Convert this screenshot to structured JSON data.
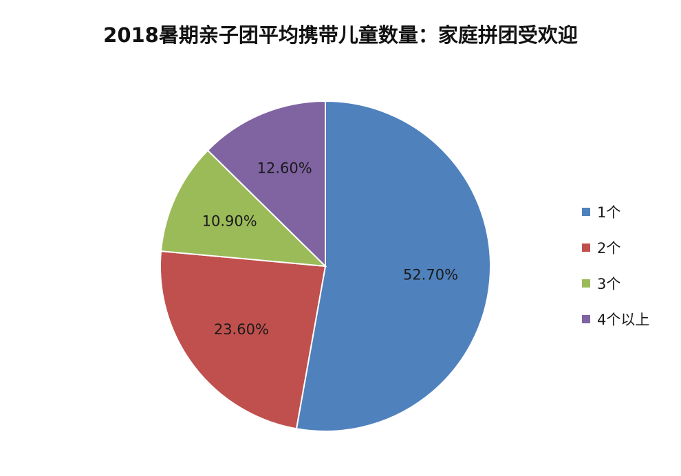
{
  "chart_data": {
    "type": "pie",
    "title": "2018暑期亲子团平均携带儿童数量：家庭拼团受欢迎",
    "slices": [
      {
        "label": "1个",
        "value": 52.7,
        "display": "52.70%",
        "color": "#4f81bd"
      },
      {
        "label": "2个",
        "value": 23.6,
        "display": "23.60%",
        "color": "#c0504d"
      },
      {
        "label": "3个",
        "value": 10.9,
        "display": "10.90%",
        "color": "#9bbb59"
      },
      {
        "label": "4个以上",
        "value": 12.6,
        "display": "12.60%",
        "color": "#8064a2"
      }
    ],
    "legend_position": "right"
  }
}
